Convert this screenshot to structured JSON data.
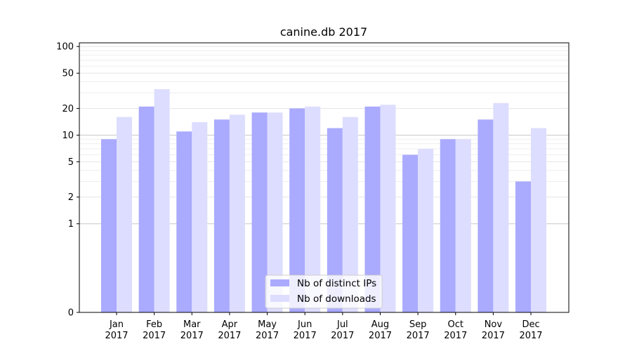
{
  "chart_data": {
    "type": "bar",
    "title": "canine.db 2017",
    "categories": [
      [
        "Jan",
        "2017"
      ],
      [
        "Feb",
        "2017"
      ],
      [
        "Mar",
        "2017"
      ],
      [
        "Apr",
        "2017"
      ],
      [
        "May",
        "2017"
      ],
      [
        "Jun",
        "2017"
      ],
      [
        "Jul",
        "2017"
      ],
      [
        "Aug",
        "2017"
      ],
      [
        "Sep",
        "2017"
      ],
      [
        "Oct",
        "2017"
      ],
      [
        "Nov",
        "2017"
      ],
      [
        "Dec",
        "2017"
      ]
    ],
    "series": [
      {
        "name": "Nb of distinct IPs",
        "color": "#aaaaff",
        "values": [
          9,
          21,
          11,
          15,
          18,
          20,
          12,
          21,
          6,
          9,
          15,
          3
        ]
      },
      {
        "name": "Nb of downloads",
        "color": "#ddddff",
        "values": [
          16,
          33,
          14,
          17,
          18,
          21,
          16,
          22,
          7,
          9,
          23,
          12
        ]
      }
    ],
    "yscale": "symlog",
    "ylim": [
      0,
      110
    ],
    "yticks": [
      "0",
      "1",
      "2",
      "5",
      "10",
      "20",
      "50",
      "100"
    ],
    "grid": true,
    "legend": "bottom-center"
  }
}
